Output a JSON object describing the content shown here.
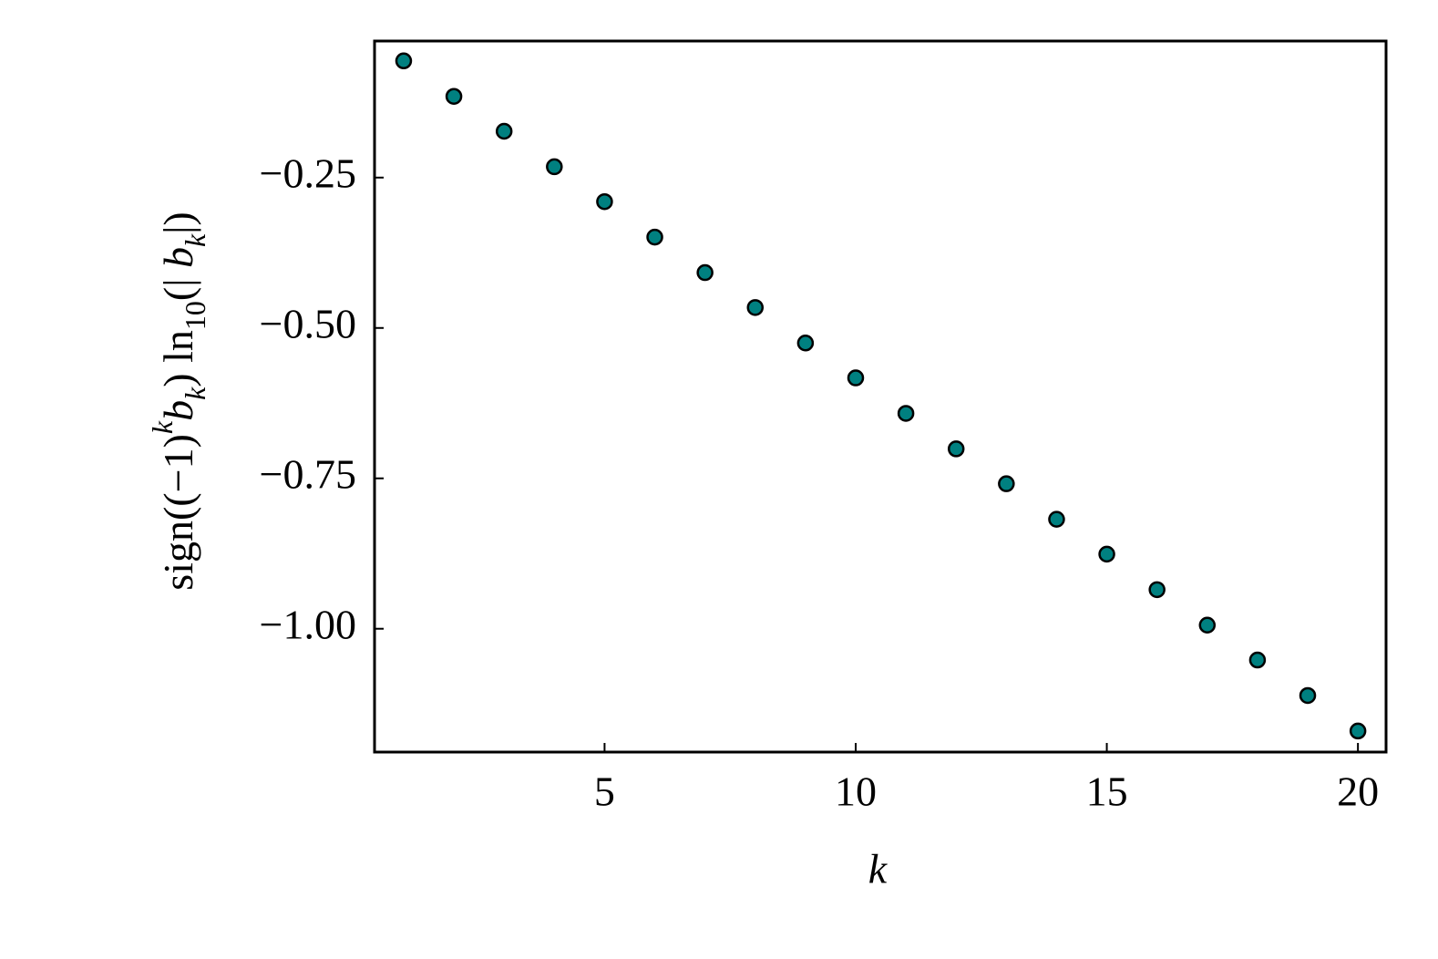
{
  "chart_data": {
    "type": "scatter",
    "xlabel": "k",
    "ylabel": [
      {
        "text": "sign((−1)"
      },
      {
        "text": "k",
        "script": "super",
        "italic": true
      },
      {
        "text": "b",
        "italic": true
      },
      {
        "text": "k",
        "script": "sub",
        "italic": true
      },
      {
        "text": ") ln"
      },
      {
        "text": "10",
        "script": "sub"
      },
      {
        "text": "(| "
      },
      {
        "text": "b",
        "italic": true
      },
      {
        "text": "k",
        "script": "sub",
        "italic": true
      },
      {
        "text": "|)"
      }
    ],
    "x": [
      1,
      2,
      3,
      4,
      5,
      6,
      7,
      8,
      9,
      10,
      11,
      12,
      13,
      14,
      15,
      16,
      17,
      18,
      19,
      20
    ],
    "values": [
      -0.056,
      -0.115,
      -0.173,
      -0.232,
      -0.29,
      -0.349,
      -0.408,
      -0.466,
      -0.525,
      -0.583,
      -0.642,
      -0.701,
      -0.759,
      -0.818,
      -0.876,
      -0.935,
      -0.994,
      -1.052,
      -1.111,
      -1.17
    ],
    "color": "#008080",
    "xlim": [
      0.42,
      20.56
    ],
    "ylim": [
      -1.205,
      -0.023
    ],
    "xticks": [
      5,
      10,
      15,
      20
    ],
    "yticks": [
      {
        "value": -0.25,
        "label": "−0.25"
      },
      {
        "value": -0.5,
        "label": "−0.50"
      },
      {
        "value": -0.75,
        "label": "−0.75"
      },
      {
        "value": -1.0,
        "label": "−1.00"
      }
    ],
    "grid": false
  }
}
